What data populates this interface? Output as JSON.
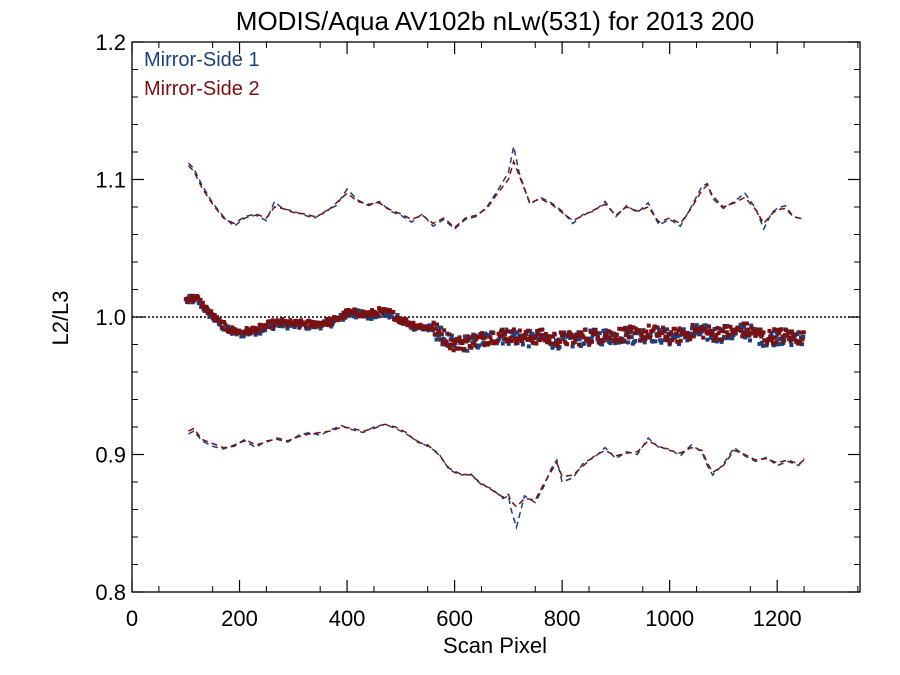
{
  "chart_data": {
    "type": "scatter",
    "title": "MODIS/Aqua AV102b nLw(531) for 2013 200",
    "xlabel": "Scan Pixel",
    "ylabel": "L2/L3",
    "xlim": [
      0,
      1354
    ],
    "ylim": [
      0.8,
      1.2
    ],
    "x_ticks": [
      0,
      200,
      400,
      600,
      800,
      1000,
      1200
    ],
    "x_tick_labels": [
      "0",
      "200",
      "400",
      "600",
      "800",
      "1000",
      "1200"
    ],
    "y_ticks": [
      0.8,
      0.9,
      1.0,
      1.1,
      1.2
    ],
    "y_tick_labels": [
      "0.8",
      "0.9",
      "1.0",
      "1.1",
      "1.2"
    ],
    "reference_line": 1.0,
    "legend_position": "top-left",
    "colors": {
      "ms1": "#1f3f7a",
      "ms2": "#7a1010",
      "reference": "#000000"
    },
    "series": [
      {
        "name": "Mirror-Side 1",
        "color": "#1f3f7a"
      },
      {
        "name": "Mirror-Side 2",
        "color": "#7a1010"
      }
    ],
    "upper_profile": {
      "x": [
        105,
        115,
        130,
        150,
        170,
        190,
        210,
        230,
        250,
        265,
        280,
        300,
        320,
        340,
        360,
        380,
        400,
        420,
        440,
        460,
        480,
        500,
        520,
        540,
        560,
        580,
        600,
        620,
        640,
        660,
        680,
        700,
        710,
        720,
        740,
        760,
        780,
        800,
        820,
        840,
        860,
        880,
        900,
        920,
        940,
        960,
        980,
        1000,
        1020,
        1040,
        1060,
        1070,
        1080,
        1100,
        1120,
        1140,
        1160,
        1175,
        1190,
        1200,
        1215,
        1230,
        1250
      ],
      "ms1": [
        1.112,
        1.108,
        1.096,
        1.083,
        1.073,
        1.066,
        1.072,
        1.074,
        1.07,
        1.084,
        1.079,
        1.077,
        1.074,
        1.072,
        1.077,
        1.081,
        1.093,
        1.085,
        1.081,
        1.084,
        1.077,
        1.074,
        1.069,
        1.075,
        1.066,
        1.071,
        1.064,
        1.071,
        1.073,
        1.08,
        1.092,
        1.105,
        1.124,
        1.105,
        1.082,
        1.087,
        1.083,
        1.077,
        1.068,
        1.075,
        1.077,
        1.084,
        1.073,
        1.081,
        1.076,
        1.083,
        1.067,
        1.071,
        1.066,
        1.08,
        1.095,
        1.097,
        1.086,
        1.079,
        1.084,
        1.09,
        1.079,
        1.064,
        1.076,
        1.079,
        1.081,
        1.073,
        1.071
      ],
      "ms2": [
        1.11,
        1.106,
        1.094,
        1.082,
        1.072,
        1.068,
        1.073,
        1.075,
        1.072,
        1.08,
        1.079,
        1.076,
        1.075,
        1.073,
        1.076,
        1.083,
        1.09,
        1.084,
        1.082,
        1.083,
        1.078,
        1.075,
        1.071,
        1.074,
        1.068,
        1.072,
        1.065,
        1.072,
        1.074,
        1.079,
        1.09,
        1.1,
        1.113,
        1.103,
        1.083,
        1.086,
        1.082,
        1.076,
        1.07,
        1.074,
        1.078,
        1.082,
        1.074,
        1.08,
        1.077,
        1.08,
        1.069,
        1.072,
        1.068,
        1.079,
        1.092,
        1.096,
        1.088,
        1.08,
        1.083,
        1.087,
        1.078,
        1.068,
        1.075,
        1.078,
        1.079,
        1.073,
        1.071
      ]
    },
    "lower_profile": {
      "x": [
        105,
        115,
        130,
        150,
        170,
        190,
        210,
        230,
        250,
        270,
        290,
        310,
        330,
        350,
        370,
        390,
        410,
        430,
        450,
        470,
        490,
        510,
        530,
        550,
        570,
        590,
        610,
        630,
        650,
        670,
        690,
        700,
        705,
        715,
        730,
        750,
        765,
        780,
        790,
        800,
        820,
        840,
        860,
        880,
        900,
        920,
        940,
        960,
        980,
        1000,
        1020,
        1040,
        1060,
        1070,
        1080,
        1100,
        1120,
        1140,
        1160,
        1180,
        1200,
        1220,
        1240,
        1250
      ],
      "ms1": [
        0.915,
        0.917,
        0.91,
        0.906,
        0.904,
        0.907,
        0.91,
        0.905,
        0.91,
        0.911,
        0.909,
        0.914,
        0.916,
        0.914,
        0.918,
        0.921,
        0.918,
        0.916,
        0.92,
        0.922,
        0.919,
        0.915,
        0.91,
        0.906,
        0.901,
        0.889,
        0.885,
        0.886,
        0.878,
        0.875,
        0.868,
        0.87,
        0.86,
        0.847,
        0.87,
        0.865,
        0.876,
        0.89,
        0.896,
        0.88,
        0.883,
        0.894,
        0.898,
        0.905,
        0.897,
        0.902,
        0.9,
        0.912,
        0.905,
        0.904,
        0.899,
        0.907,
        0.902,
        0.892,
        0.885,
        0.893,
        0.905,
        0.899,
        0.895,
        0.898,
        0.892,
        0.895,
        0.892,
        0.897
      ],
      "ms2": [
        0.917,
        0.919,
        0.911,
        0.908,
        0.905,
        0.906,
        0.911,
        0.907,
        0.909,
        0.912,
        0.91,
        0.913,
        0.915,
        0.916,
        0.917,
        0.92,
        0.919,
        0.917,
        0.919,
        0.922,
        0.92,
        0.916,
        0.909,
        0.907,
        0.9,
        0.89,
        0.886,
        0.885,
        0.879,
        0.874,
        0.869,
        0.871,
        0.866,
        0.862,
        0.868,
        0.867,
        0.878,
        0.888,
        0.894,
        0.884,
        0.885,
        0.892,
        0.899,
        0.903,
        0.899,
        0.901,
        0.902,
        0.91,
        0.906,
        0.903,
        0.901,
        0.905,
        0.903,
        0.894,
        0.887,
        0.892,
        0.903,
        0.9,
        0.896,
        0.897,
        0.894,
        0.896,
        0.893,
        0.896
      ]
    },
    "ratio_trend": {
      "x": [
        100,
        120,
        140,
        160,
        180,
        200,
        220,
        240,
        260,
        280,
        300,
        320,
        340,
        360,
        380,
        400,
        420,
        440,
        460,
        480,
        500,
        520,
        540,
        560,
        580,
        600,
        620,
        640,
        660,
        680,
        700,
        720,
        740,
        760,
        780,
        800,
        820,
        840,
        860,
        880,
        900,
        920,
        940,
        960,
        980,
        1000,
        1020,
        1040,
        1060,
        1080,
        1100,
        1120,
        1140,
        1160,
        1180,
        1200,
        1220,
        1240,
        1250
      ],
      "y": [
        1.012,
        1.013,
        1.004,
        0.996,
        0.99,
        0.988,
        0.989,
        0.991,
        0.994,
        0.995,
        0.994,
        0.994,
        0.994,
        0.995,
        0.997,
        1.002,
        1.002,
        1.001,
        1.003,
        1.002,
        0.997,
        0.994,
        0.992,
        0.991,
        0.985,
        0.979,
        0.981,
        0.982,
        0.984,
        0.986,
        0.986,
        0.985,
        0.984,
        0.985,
        0.983,
        0.983,
        0.983,
        0.985,
        0.985,
        0.986,
        0.986,
        0.987,
        0.986,
        0.988,
        0.987,
        0.985,
        0.986,
        0.988,
        0.989,
        0.987,
        0.988,
        0.988,
        0.99,
        0.987,
        0.984,
        0.986,
        0.985,
        0.984,
        0.984
      ],
      "scatter_spread": 0.006
    }
  }
}
